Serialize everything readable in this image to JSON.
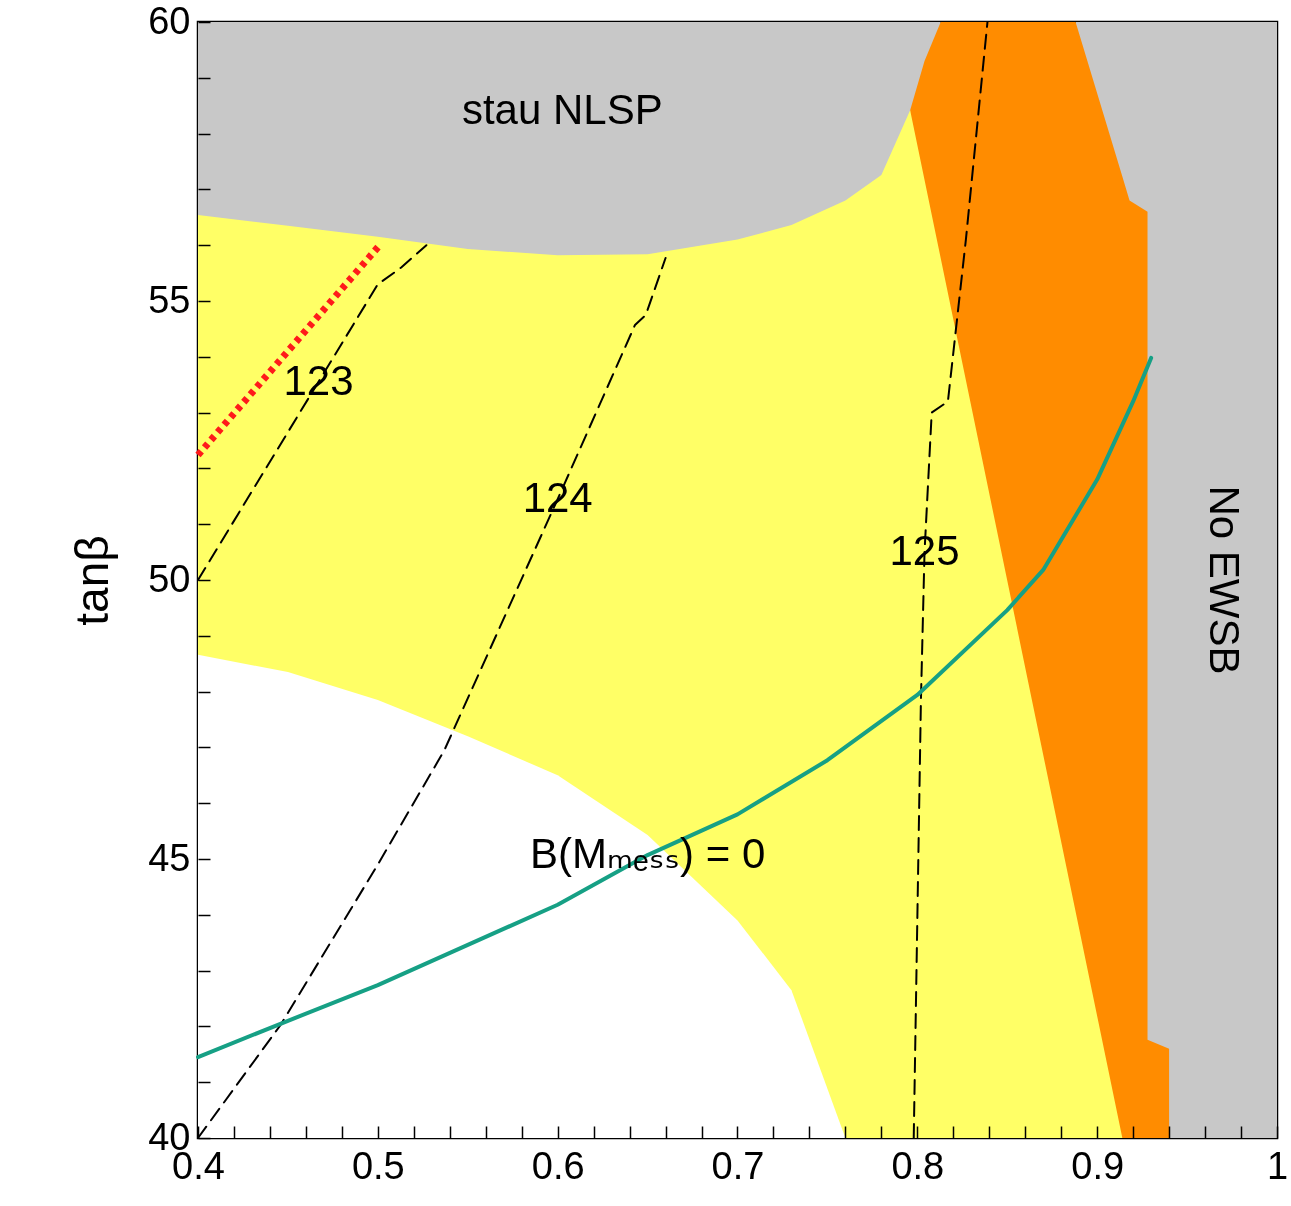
{
  "chart_data": {
    "type": "line",
    "ylabel": "tanβ",
    "xlim": [
      0.4,
      1
    ],
    "ylim": [
      40,
      60
    ],
    "xticks": [
      0.4,
      {
        "value": 0.42,
        "label": null
      },
      {
        "value": 0.44,
        "label": null
      },
      {
        "value": 0.46,
        "label": null
      },
      {
        "value": 0.48,
        "label": null
      },
      0.5,
      {
        "value": 0.52,
        "label": null
      },
      {
        "value": 0.54,
        "label": null
      },
      {
        "value": 0.56,
        "label": null
      },
      {
        "value": 0.58,
        "label": null
      },
      0.6,
      {
        "value": 0.62,
        "label": null
      },
      {
        "value": 0.64,
        "label": null
      },
      {
        "value": 0.66,
        "label": null
      },
      {
        "value": 0.68,
        "label": null
      },
      0.7,
      {
        "value": 0.72,
        "label": null
      },
      {
        "value": 0.74,
        "label": null
      },
      {
        "value": 0.76,
        "label": null
      },
      {
        "value": 0.78,
        "label": null
      },
      0.8,
      {
        "value": 0.82,
        "label": null
      },
      {
        "value": 0.84,
        "label": null
      },
      {
        "value": 0.86,
        "label": null
      },
      {
        "value": 0.88,
        "label": null
      },
      0.9,
      {
        "value": 0.92,
        "label": null
      },
      {
        "value": 0.94,
        "label": null
      },
      {
        "value": 0.96,
        "label": null
      },
      {
        "value": 0.98,
        "label": null
      },
      1
    ],
    "yticks": [
      40,
      {
        "value": 41,
        "label": null
      },
      {
        "value": 42,
        "label": null
      },
      {
        "value": 43,
        "label": null
      },
      {
        "value": 44,
        "label": null
      },
      45,
      {
        "value": 46,
        "label": null
      },
      {
        "value": 47,
        "label": null
      },
      {
        "value": 48,
        "label": null
      },
      {
        "value": 49,
        "label": null
      },
      50,
      {
        "value": 51,
        "label": null
      },
      {
        "value": 52,
        "label": null
      },
      {
        "value": 53,
        "label": null
      },
      {
        "value": 54,
        "label": null
      },
      55,
      {
        "value": 56,
        "label": null
      },
      {
        "value": 57,
        "label": null
      },
      {
        "value": 58,
        "label": null
      },
      {
        "value": 59,
        "label": null
      },
      60
    ],
    "series": [
      {
        "type": "area",
        "name": "stau NLSP",
        "color": "#c8c8c8",
        "x": [
          0.4,
          0.5,
          0.6,
          0.7,
          0.813
        ],
        "values": [
          60,
          60,
          60,
          60,
          60
        ]
      },
      {
        "type": "area",
        "name": "No EWSB",
        "color": "#c8c8c8",
        "x": [
          0.888,
          0.94,
          1
        ],
        "values": [
          60,
          60,
          60
        ]
      },
      {
        "type": "area",
        "color": "#ff8c00",
        "x": [
          0.796,
          0.804,
          0.813,
          0.85,
          0.888,
          0.914,
          0.918,
          0.928,
          0.928,
          0.94,
          0.94
        ],
        "values": [
          58.42,
          59.3,
          60,
          60,
          60,
          57.23,
          56.8,
          56.6,
          41.76,
          41.6,
          40
        ]
      },
      {
        "type": "area",
        "color": "#ffff66",
        "x": [
          0.4,
          0.45,
          0.5,
          0.55,
          0.6,
          0.65,
          0.7,
          0.73,
          0.76,
          0.78,
          0.796,
          0.85,
          0.914
        ],
        "values": [
          56.54,
          56.35,
          56.15,
          55.93,
          55.82,
          55.84,
          56.1,
          56.36,
          56.8,
          57.26,
          58.42,
          49.99,
          40
        ]
      },
      {
        "type": "area",
        "color": "#ffffff",
        "x": [
          0.4,
          0.45,
          0.5,
          0.55,
          0.6,
          0.65,
          0.7,
          0.73,
          0.76
        ],
        "values": [
          48.66,
          48.35,
          47.85,
          47.2,
          46.5,
          45.43,
          43.9,
          42.65,
          40
        ]
      },
      {
        "color": "#000000",
        "line_style": "dashed",
        "x": [
          0.4,
          0.5,
          0.513,
          0.527
        ],
        "values": [
          50,
          55.3,
          55.6,
          56.0
        ]
      },
      {
        "color": "#000000",
        "line_style": "dashed",
        "x": [
          0.4,
          0.446,
          0.5,
          0.537,
          0.6,
          0.643,
          0.649,
          0.66
        ],
        "values": [
          40,
          42.03,
          44.9,
          46.95,
          51.45,
          54.57,
          54.75,
          55.77
        ]
      },
      {
        "color": "#000000",
        "line_style": "dashed",
        "x": [
          0.798,
          0.802,
          0.804,
          0.808,
          0.817,
          0.827,
          0.839
        ],
        "values": [
          40,
          47.85,
          50.5,
          53.0,
          53.2,
          56.1,
          60
        ]
      },
      {
        "color": "#ff1a1a",
        "line_style": "dotted",
        "x": [
          0.4,
          0.501
        ],
        "values": [
          52.24,
          56.0
        ]
      },
      {
        "color": "#16a085",
        "line_style": "solid",
        "x": [
          0.4,
          0.45,
          0.5,
          0.6,
          0.65,
          0.7,
          0.75,
          0.8,
          0.85,
          0.87,
          0.9,
          0.92,
          0.93
        ],
        "values": [
          41.45,
          42.1,
          42.74,
          44.18,
          45.07,
          45.8,
          46.77,
          47.94,
          49.46,
          50.18,
          51.8,
          53.2,
          53.98
        ]
      }
    ],
    "annotations": [
      {
        "text": "123",
        "x": 0.467,
        "y": 53.55
      },
      {
        "text": "124",
        "x": 0.6,
        "y": 51.45
      },
      {
        "text": "125",
        "x": 0.804,
        "y": 50.5
      },
      {
        "text": "B(Mₘₑₛₛ) = 0",
        "x": 0.65,
        "y": 45.07
      }
    ]
  }
}
